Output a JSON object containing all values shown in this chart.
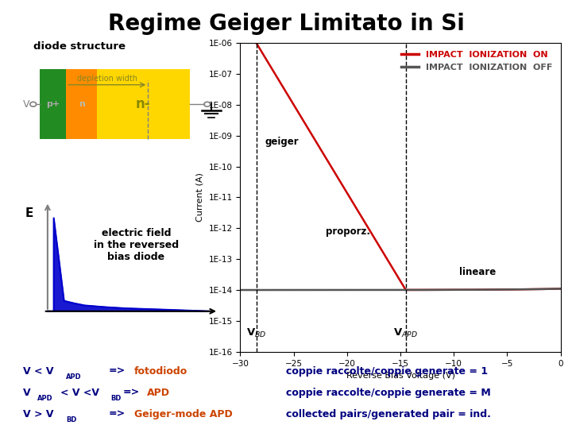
{
  "title": "Regime Geiger Limitato in Si",
  "title_fontsize": 20,
  "bg_color": "#ffffff",
  "diode_label": "diode structure",
  "v_label": "V",
  "e_label": "E",
  "depletion_label": "depletion width",
  "p_label": "p+",
  "n_label": "n",
  "nminus_label": "n-",
  "electric_field_text": "electric field\nin the reversed\nbias diode",
  "geiger_label": "geiger",
  "proporz_label": "proporz.",
  "lineare_label": "lineare",
  "vbd_label": "V$_{BD}$",
  "vapd_label": "V$_{APD}$",
  "legend_on": "IMPACT  IONIZATION  ON",
  "legend_off": "IMPACT  IONIZATION  OFF",
  "xlabel": "Reverse Bias Voltage (V)",
  "ylabel": "Current (A)",
  "color_on": "#cc0000",
  "color_off": "#555555",
  "dark_blue": "#000080",
  "orange_text": "#cc4400",
  "right1": "coppie raccolte/coppie generate = 1",
  "right2": "coppie raccolte/coppie generate = M",
  "right3": "collected pairs/generated pair = ind.",
  "vbd_x": -28.5,
  "vapd_x": -14.5,
  "ylim_log": [
    -16,
    -6
  ],
  "xlim": [
    -30,
    0
  ],
  "green_color": "#228B22",
  "orange_color": "#FF8C00",
  "yellow_color": "#FFD700",
  "blue_color": "#0000CC"
}
